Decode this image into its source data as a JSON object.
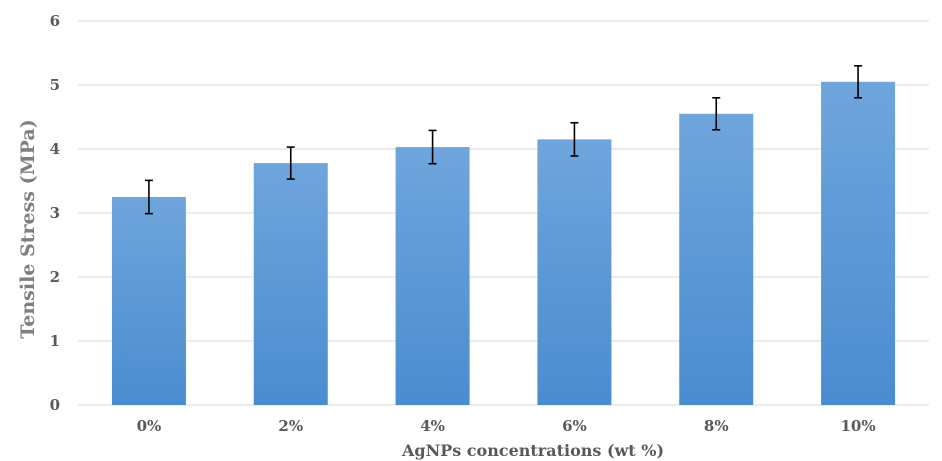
{
  "chart_data": {
    "type": "bar",
    "title": "",
    "xlabel": "AgNPs concentrations (wt %)",
    "ylabel": "Tensile Stress (MPa)",
    "categories": [
      "0%",
      "2%",
      "4%",
      "6%",
      "8%",
      "10%"
    ],
    "values": [
      3.25,
      3.78,
      4.03,
      4.15,
      4.55,
      5.05
    ],
    "error": [
      0.26,
      0.25,
      0.26,
      0.26,
      0.25,
      0.25
    ],
    "ylim": [
      0,
      6
    ],
    "yticks": [
      "0",
      "1",
      "2",
      "3",
      "4",
      "5",
      "6"
    ],
    "grid": true,
    "legend": "none",
    "colors": {
      "bar_top": "#6fa5dc",
      "bar_bottom": "#4a8cd0",
      "grid": "#d9d9d9",
      "error_bar": "#000000"
    }
  }
}
